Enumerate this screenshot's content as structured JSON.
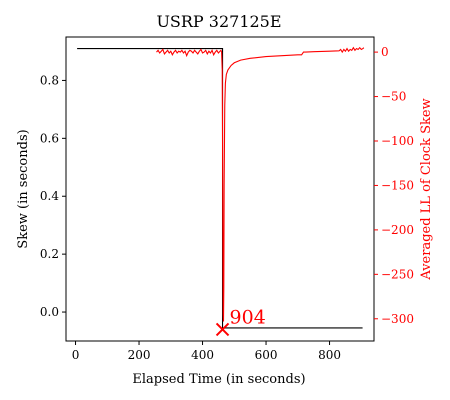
{
  "chart_data": {
    "type": "line",
    "title": "USRP 327125E",
    "xlabel": "Elapsed Time (in seconds)",
    "ylabel_left": "Skew (in seconds)",
    "ylabel_right": "Averaged LL of Clock Skew",
    "xlim": [
      -30,
      940
    ],
    "ylim_left": [
      -0.1,
      0.95
    ],
    "ylim_right": [
      -325,
      17
    ],
    "x_ticks": [
      0,
      200,
      400,
      600,
      800
    ],
    "y_ticks_left": [
      0.0,
      0.2,
      0.4,
      0.6,
      0.8
    ],
    "y_ticks_left_labels": [
      "0.0",
      "0.2",
      "0.4",
      "0.6",
      "0.8"
    ],
    "y_ticks_right": [
      0,
      -50,
      -100,
      -150,
      -200,
      -250,
      -300
    ],
    "y_ticks_right_labels": [
      "0",
      "−50",
      "−100",
      "−150",
      "−200",
      "−250",
      "−300"
    ],
    "colors": {
      "skew": "#000000",
      "ll": "#ff0000",
      "axes": "#000000"
    },
    "series": [
      {
        "axis": "left",
        "color": "#000000",
        "points": [
          [
            5,
            0.91
          ],
          [
            463,
            0.91
          ],
          [
            463,
            -0.055
          ],
          [
            904,
            -0.055
          ]
        ]
      },
      {
        "axis": "right",
        "color": "#ff0000",
        "points": [
          [
            255,
            0
          ],
          [
            260,
            2
          ],
          [
            265,
            -1
          ],
          [
            270,
            1
          ],
          [
            275,
            3
          ],
          [
            280,
            -2
          ],
          [
            285,
            0
          ],
          [
            290,
            2
          ],
          [
            295,
            -1
          ],
          [
            300,
            1
          ],
          [
            305,
            -3
          ],
          [
            310,
            0
          ],
          [
            315,
            2
          ],
          [
            320,
            -1
          ],
          [
            325,
            1
          ],
          [
            330,
            0
          ],
          [
            335,
            2
          ],
          [
            340,
            -1
          ],
          [
            345,
            1
          ],
          [
            350,
            -4
          ],
          [
            355,
            0
          ],
          [
            360,
            2
          ],
          [
            365,
            1
          ],
          [
            370,
            -1
          ],
          [
            375,
            2
          ],
          [
            380,
            0
          ],
          [
            385,
            -2
          ],
          [
            390,
            1
          ],
          [
            395,
            3
          ],
          [
            400,
            -1
          ],
          [
            405,
            0
          ],
          [
            410,
            2
          ],
          [
            415,
            -2
          ],
          [
            420,
            1
          ],
          [
            425,
            -1
          ],
          [
            430,
            2
          ],
          [
            435,
            -3
          ],
          [
            440,
            0
          ],
          [
            445,
            2
          ],
          [
            450,
            -1
          ],
          [
            455,
            1
          ],
          [
            458,
            2
          ],
          [
            460,
            0
          ],
          [
            462,
            -20
          ],
          [
            463,
            -100
          ],
          [
            464,
            -200
          ],
          [
            465,
            -295
          ],
          [
            466,
            -303
          ],
          [
            467,
            -265
          ],
          [
            468,
            -150
          ],
          [
            470,
            -60
          ],
          [
            472,
            -35
          ],
          [
            475,
            -25
          ],
          [
            480,
            -20
          ],
          [
            490,
            -15
          ],
          [
            500,
            -12
          ],
          [
            520,
            -9
          ],
          [
            550,
            -7
          ],
          [
            600,
            -5
          ],
          [
            650,
            -4
          ],
          [
            700,
            -3
          ],
          [
            712,
            -3
          ],
          [
            718,
            0
          ],
          [
            725,
            0
          ],
          [
            750,
            0.5
          ],
          [
            800,
            1
          ],
          [
            830,
            1.5
          ],
          [
            835,
            3
          ],
          [
            840,
            0
          ],
          [
            845,
            3
          ],
          [
            850,
            1
          ],
          [
            855,
            4
          ],
          [
            860,
            1
          ],
          [
            865,
            3
          ],
          [
            870,
            2
          ],
          [
            875,
            5
          ],
          [
            880,
            2
          ],
          [
            885,
            4
          ],
          [
            890,
            3
          ],
          [
            895,
            5
          ],
          [
            900,
            3
          ],
          [
            905,
            4
          ],
          [
            908,
            5
          ]
        ]
      }
    ],
    "annotations": [
      {
        "x": 463,
        "y": -0.06,
        "axis": "left",
        "marker": "x",
        "color": "#ff0000",
        "text": "904"
      }
    ]
  }
}
